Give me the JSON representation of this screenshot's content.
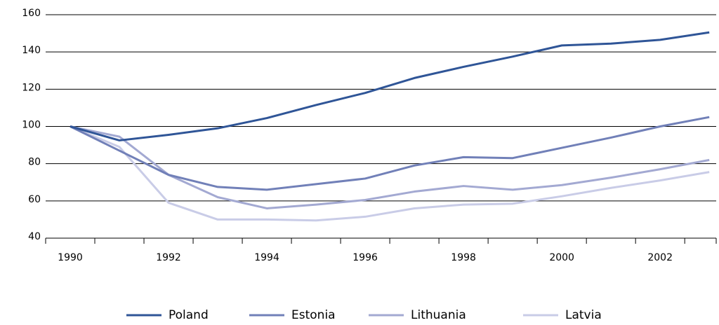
{
  "chart_data": {
    "type": "line",
    "x": [
      1990,
      1991,
      1992,
      1993,
      1994,
      1995,
      1996,
      1997,
      1998,
      1999,
      2000,
      2001,
      2002,
      2003
    ],
    "series": [
      {
        "name": "Poland",
        "color": "#2f5597",
        "values": [
          100,
          92.5,
          95.5,
          99,
          104.5,
          111.5,
          118,
          126,
          132,
          137.5,
          143.5,
          144.5,
          146.5,
          150.5
        ]
      },
      {
        "name": "Estonia",
        "color": "#7180b8",
        "values": [
          100,
          87,
          74,
          67.5,
          66,
          69,
          72,
          79,
          83.5,
          83,
          88.5,
          94,
          100,
          105
        ]
      },
      {
        "name": "Lithuania",
        "color": "#a3a9d2",
        "values": [
          100,
          94.5,
          74,
          62,
          56,
          58,
          60.5,
          65,
          68,
          66,
          68.5,
          72.5,
          77,
          82
        ]
      },
      {
        "name": "Latvia",
        "color": "#c9cce7",
        "values": [
          100,
          89,
          59,
          50,
          50,
          49.5,
          51.5,
          56,
          58,
          58.5,
          62.5,
          67,
          71,
          75.5
        ]
      }
    ],
    "xlim": [
      1989.5,
      2003.14
    ],
    "xticks": [
      1990,
      1992,
      1994,
      1996,
      1998,
      2000,
      2002
    ],
    "ylim": [
      40,
      160
    ],
    "yticks": [
      40,
      60,
      80,
      100,
      120,
      140,
      160
    ],
    "grid": true,
    "legend": "bottom"
  }
}
